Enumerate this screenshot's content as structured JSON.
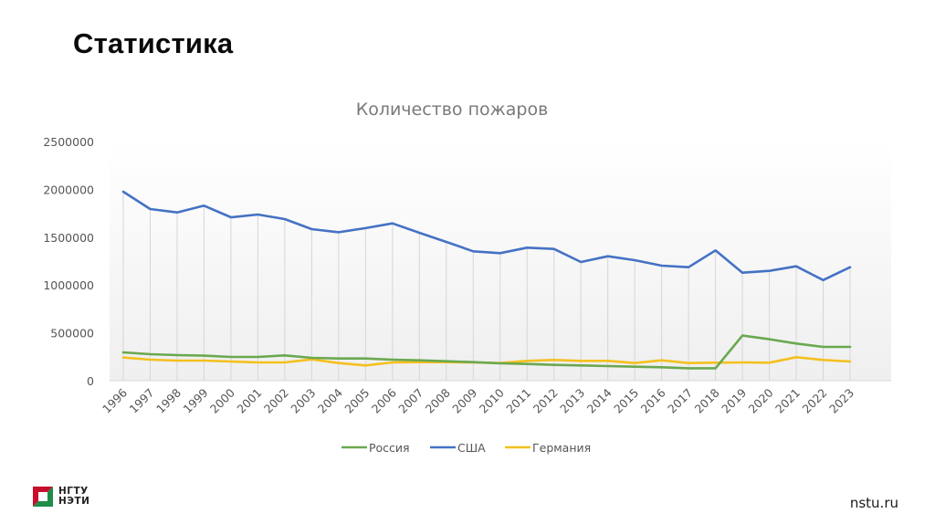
{
  "slide": {
    "title": "Статистика",
    "footer_logo_line1": "НГТУ",
    "footer_logo_line2": "НЭТИ",
    "footer_site": "nstu.ru"
  },
  "colors": {
    "russia": "#6aa84f",
    "usa": "#4472c4",
    "germany": "#f4c01e",
    "logo_red": "#c8102e",
    "logo_green": "#1e8c4a"
  },
  "chart_data": {
    "type": "line",
    "title": "Количество пожаров",
    "xlabel": "",
    "ylabel": "",
    "ylim": [
      0,
      2500000
    ],
    "yticks": [
      0,
      500000,
      1000000,
      1500000,
      2000000,
      2500000
    ],
    "ytick_labels": [
      "0",
      "500000",
      "1000000",
      "1500000",
      "2000000",
      "2500000"
    ],
    "grid": "vertical drop lines",
    "legend_position": "bottom",
    "categories": [
      "1996",
      "1997",
      "1998",
      "1999",
      "2000",
      "2001",
      "2002",
      "2003",
      "2004",
      "2005",
      "2006",
      "2007",
      "2008",
      "2009",
      "2010",
      "2011",
      "2012",
      "2013",
      "2014",
      "2015",
      "2016",
      "2017",
      "2018",
      "2019",
      "2020",
      "2021",
      "2022",
      "2023"
    ],
    "series": [
      {
        "name": "Россия",
        "color": "#6aa84f",
        "values": [
          296000,
          277000,
          267000,
          261000,
          248000,
          248000,
          264000,
          239000,
          232000,
          232000,
          219000,
          213000,
          203000,
          194000,
          181000,
          175000,
          165000,
          159000,
          153000,
          146000,
          140000,
          130000,
          130000,
          471000,
          433000,
          388000,
          353000,
          353000
        ]
      },
      {
        "name": "США",
        "color": "#4472c4",
        "values": [
          1975000,
          1794000,
          1759000,
          1829000,
          1708000,
          1737000,
          1689000,
          1584000,
          1552000,
          1594000,
          1644000,
          1546000,
          1450000,
          1352000,
          1333000,
          1390000,
          1377000,
          1240000,
          1301000,
          1260000,
          1202000,
          1186000,
          1362000,
          1129000,
          1148000,
          1196000,
          1052000,
          1186000
        ]
      },
      {
        "name": "Германия",
        "color": "#f4c01e",
        "values": [
          242000,
          219000,
          210000,
          210000,
          200000,
          191000,
          191000,
          222000,
          184000,
          159000,
          191000,
          194000,
          194000,
          191000,
          184000,
          207000,
          217000,
          207000,
          207000,
          184000,
          213000,
          184000,
          188000,
          191000,
          188000,
          245000,
          217000,
          200000
        ]
      }
    ]
  }
}
